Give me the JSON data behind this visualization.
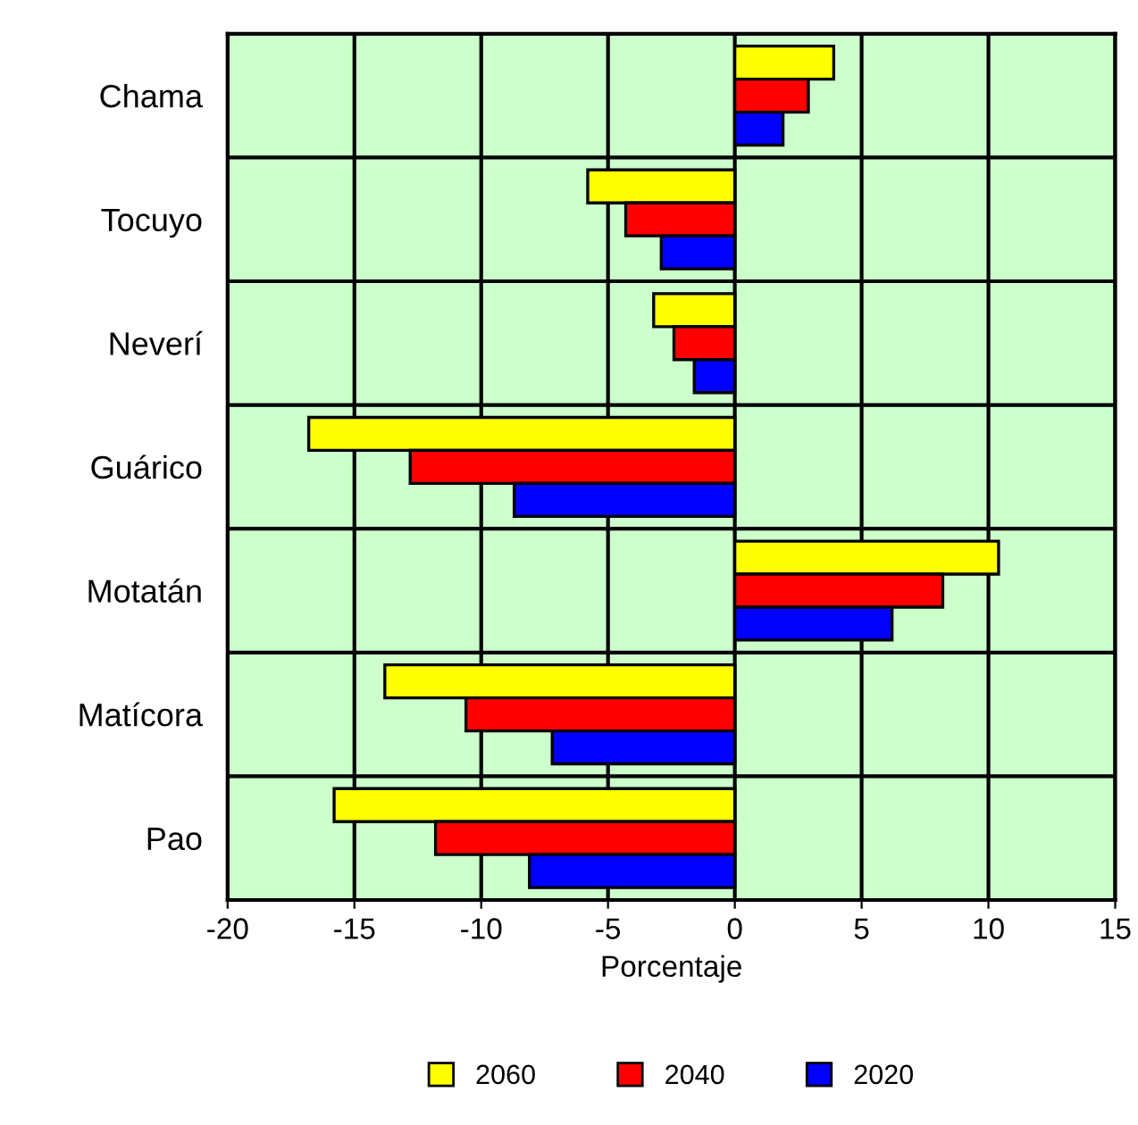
{
  "chart_data": {
    "type": "bar",
    "orientation": "horizontal",
    "categories": [
      "Chama",
      "Tocuyo",
      "Neverí",
      "Guárico",
      "Motatán",
      "Matícora",
      "Pao"
    ],
    "series": [
      {
        "name": "2060",
        "color": "#ffff00",
        "values": [
          3.9,
          -5.8,
          -3.2,
          -16.8,
          10.4,
          -13.8,
          -15.8
        ]
      },
      {
        "name": "2040",
        "color": "#ff0000",
        "values": [
          2.9,
          -4.3,
          -2.4,
          -12.8,
          8.2,
          -10.6,
          -11.8
        ]
      },
      {
        "name": "2020",
        "color": "#0000ff",
        "values": [
          1.9,
          -2.9,
          -1.6,
          -8.7,
          6.2,
          -7.2,
          -8.1
        ]
      }
    ],
    "xlabel": "Porcentaje",
    "xlim": [
      -20,
      15
    ],
    "xticks": [
      -20,
      -15,
      -10,
      -5,
      0,
      5,
      10,
      15
    ],
    "grid": true,
    "legend": "bottom"
  }
}
